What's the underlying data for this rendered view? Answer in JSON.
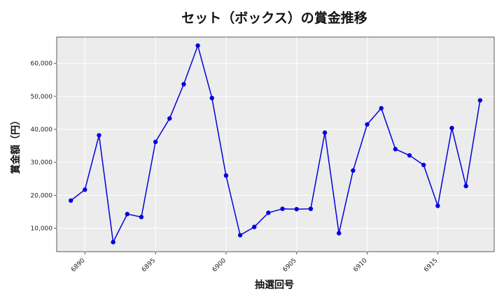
{
  "chart_data": {
    "type": "line",
    "title": "セット（ボックス）の賞金推移",
    "xlabel": "抽選回号",
    "ylabel": "賞金額（円）",
    "x_ticks": [
      "6890",
      "6895",
      "6900",
      "6905",
      "6910",
      "6915"
    ],
    "y_ticks": [
      "10,000",
      "20,000",
      "30,000",
      "40,000",
      "50,000",
      "60,000"
    ],
    "xlim": [
      6888,
      6919
    ],
    "ylim": [
      2900,
      68000
    ],
    "grid": true,
    "series": [
      {
        "color": "#0000dd",
        "x": [
          6889,
          6890,
          6891,
          6892,
          6893,
          6894,
          6895,
          6896,
          6897,
          6898,
          6899,
          6900,
          6901,
          6902,
          6903,
          6904,
          6905,
          6906,
          6907,
          6908,
          6909,
          6910,
          6911,
          6912,
          6913,
          6914,
          6915,
          6916,
          6917,
          6918
        ],
        "values": [
          18400,
          21700,
          38200,
          5800,
          14300,
          13400,
          36200,
          43300,
          53700,
          65400,
          49500,
          26000,
          7900,
          10400,
          14700,
          15900,
          15800,
          15900,
          39000,
          8500,
          27500,
          41500,
          46400,
          34000,
          32100,
          29200,
          16800,
          40400,
          22800,
          48800
        ]
      }
    ]
  }
}
